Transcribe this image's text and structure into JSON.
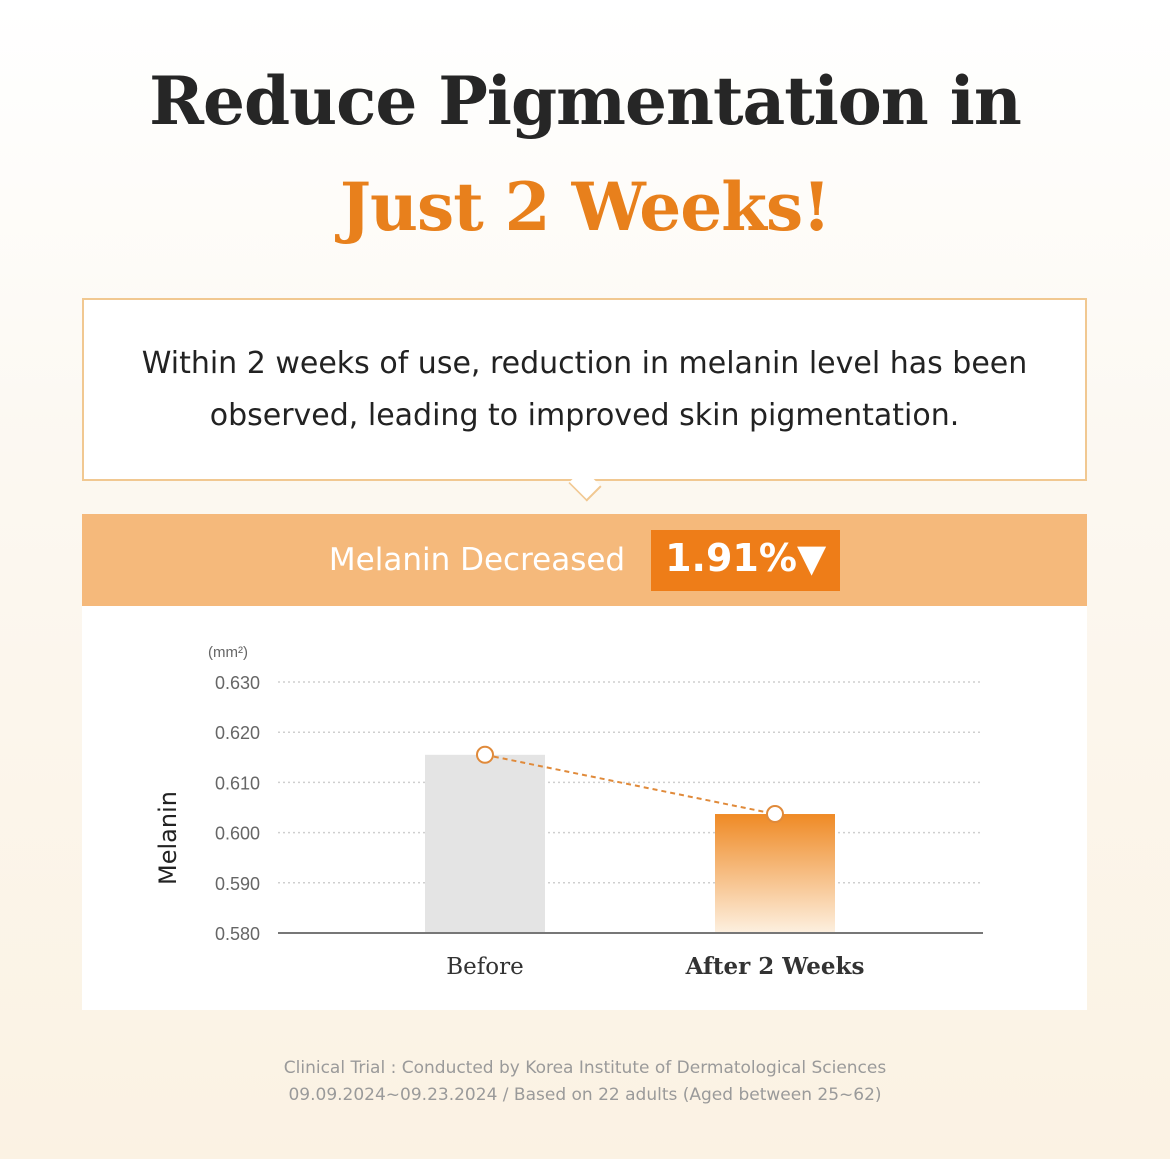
{
  "title_line1": "Reduce Pigmentation in",
  "title_line2": "Just 2 Weeks!",
  "callout_text": "Within 2 weeks of use, reduction in melanin level has been observed, leading to improved skin pigmentation.",
  "band": {
    "label": "Melanin Decreased",
    "value": "1.91%▼"
  },
  "colors": {
    "accent": "#ee7d18",
    "band": "#f5b97b",
    "before_bar": "#e4e4e4",
    "title_accent": "#e8801c"
  },
  "chart_data": {
    "type": "bar",
    "categories": [
      "Before",
      "After 2 Weeks"
    ],
    "values": [
      0.6155,
      0.6037
    ],
    "unit": "(mm²)",
    "ylabel": "Melanin",
    "ylim": [
      0.58,
      0.63
    ],
    "yticks": [
      "0.630",
      "0.620",
      "0.610",
      "0.600",
      "0.590",
      "0.580"
    ],
    "grid": true,
    "overlay": "dashed line connecting bar tops"
  },
  "footnote_line1": "Clinical Trial : Conducted by Korea Institute of Dermatological Sciences",
  "footnote_line2": "09.09.2024~09.23.2024 / Based on  22 adults (Aged between 25~62)"
}
